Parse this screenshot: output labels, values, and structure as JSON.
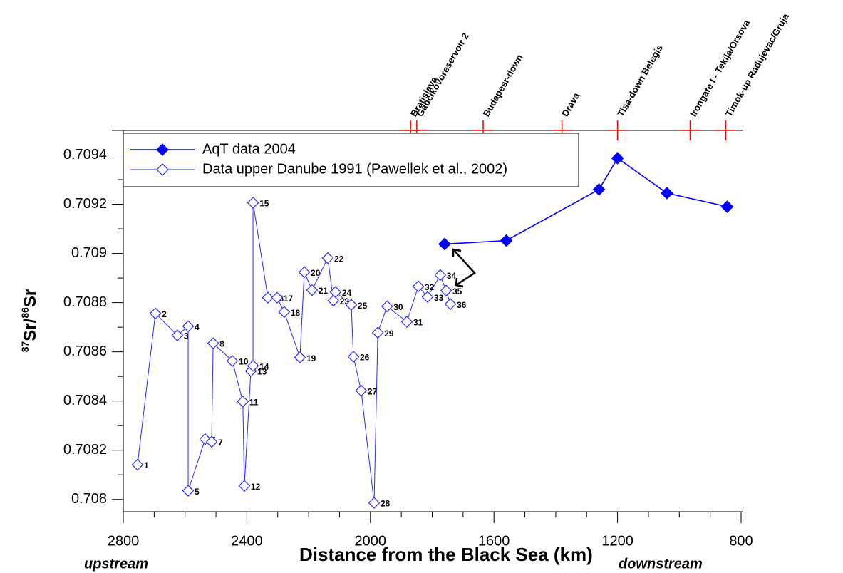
{
  "chart_data": {
    "type": "line",
    "x_label": "Distance from the Black Sea (km)",
    "y_label_parts": [
      "87",
      "Sr/",
      "86",
      "Sr"
    ],
    "annotations": {
      "left": "upstream",
      "right": "downstream"
    },
    "xlim": [
      2800,
      800
    ],
    "xticks": [
      2800,
      2400,
      2000,
      1600,
      1200,
      800
    ],
    "ylim": [
      0.70795,
      0.7095
    ],
    "yticks": [
      0.708,
      0.7082,
      0.7084,
      0.7086,
      0.7088,
      0.709,
      0.7092,
      0.7094
    ],
    "series": [
      {
        "name": "AqT data 2004",
        "color": "#0000ff",
        "filled": true,
        "x": [
          1760,
          1560,
          1260,
          1200,
          1040,
          845
        ],
        "values": [
          0.709038,
          0.709052,
          0.70926,
          0.709387,
          0.709245,
          0.70919
        ]
      },
      {
        "name": "Data upper Danube 1991 (Pawellek et al., 2002)",
        "color": "#2a2aff",
        "filled": false,
        "x": [
          2754,
          2696,
          2625,
          2590,
          2590,
          2535,
          2514,
          2509,
          2447,
          2413,
          2408,
          2387,
          2380,
          2380,
          2332,
          2302,
          2279,
          2228,
          2214,
          2189,
          2138,
          2120,
          2113,
          2062,
          2055,
          2030,
          1988,
          1976,
          1946,
          1882,
          1845,
          1815,
          1774,
          1755,
          1741
        ],
        "values": [
          0.708141,
          0.708756,
          0.708667,
          0.708704,
          0.708035,
          0.708245,
          0.708234,
          0.708635,
          0.708563,
          0.708398,
          0.708055,
          0.708522,
          0.708543,
          0.709206,
          0.70882,
          0.70882,
          0.708762,
          0.708577,
          0.708924,
          0.708851,
          0.708981,
          0.708808,
          0.708843,
          0.708791,
          0.70858,
          0.708442,
          0.707986,
          0.708678,
          0.708785,
          0.708722,
          0.708866,
          0.708823,
          0.708912,
          0.708849,
          0.708794
        ],
        "point_labels": [
          "1",
          "2",
          "3",
          "4",
          "5",
          "6",
          "7",
          "8",
          "10",
          "11",
          "12",
          "13",
          "14",
          "15",
          "16",
          "17",
          "18",
          "19",
          "20",
          "21",
          "22",
          "23",
          "24",
          "25",
          "26",
          "27",
          "28",
          "29",
          "30",
          "31",
          "32",
          "33",
          "34",
          "35",
          "36"
        ]
      }
    ],
    "sites": [
      {
        "name": "Bratislava",
        "x": 1870
      },
      {
        "name": "Gabcikovoreservoir 2",
        "x": 1850
      },
      {
        "name": "Budapesr-down",
        "x": 1635
      },
      {
        "name": "Drava",
        "x": 1380
      },
      {
        "name": "Tisa-down Belegis",
        "x": 1200
      },
      {
        "name": "Irongate I - Tekija/Orsova",
        "x": 965
      },
      {
        "name": "Timok-up Radujevac/Gruja",
        "x": 850
      }
    ],
    "site_color": "#ff0000",
    "legend_position": "upper left"
  }
}
